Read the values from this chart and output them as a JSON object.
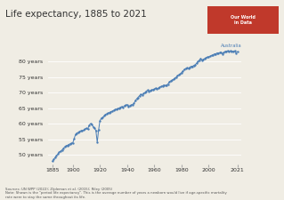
{
  "title": "Life expectancy, 1885 to 2021",
  "title_fontsize": 7.5,
  "background_color": "#f0ede4",
  "line_color": "#4a7db5",
  "label_color": "#4a7db5",
  "grid_color": "#ffffff",
  "text_color": "#333333",
  "note_color": "#555555",
  "label": "Australia",
  "yticks": [
    50,
    55,
    60,
    65,
    70,
    75,
    80
  ],
  "ytick_labels": [
    "50 years",
    "55 years",
    "60 years",
    "65 years",
    "70 years",
    "75 years",
    "80 years"
  ],
  "xticks": [
    1885,
    1900,
    1920,
    1940,
    1960,
    1980,
    2000,
    2021
  ],
  "xlim": [
    1882,
    2024
  ],
  "ylim": [
    47,
    87
  ],
  "source_text": "Sources: UN WPP (2022); Zijdeman et al. (2015); Riley (2005)\nNote: Shown is the \"period life expectancy\". This is the average number of years a newborn would live if age-specific mortality\nrate were to stay the same throughout its life.",
  "owid_box_color": "#c0392b",
  "owid_text": "Our World\nin Data",
  "data": {
    "years": [
      1885,
      1886,
      1887,
      1888,
      1889,
      1890,
      1891,
      1892,
      1893,
      1894,
      1895,
      1896,
      1897,
      1898,
      1899,
      1900,
      1901,
      1902,
      1903,
      1904,
      1905,
      1906,
      1907,
      1908,
      1909,
      1910,
      1911,
      1912,
      1913,
      1914,
      1915,
      1916,
      1917,
      1918,
      1919,
      1920,
      1921,
      1922,
      1923,
      1924,
      1925,
      1926,
      1927,
      1928,
      1929,
      1930,
      1931,
      1932,
      1933,
      1934,
      1935,
      1936,
      1937,
      1938,
      1939,
      1940,
      1941,
      1942,
      1943,
      1944,
      1945,
      1946,
      1947,
      1948,
      1949,
      1950,
      1951,
      1952,
      1953,
      1954,
      1955,
      1956,
      1957,
      1958,
      1959,
      1960,
      1961,
      1962,
      1963,
      1964,
      1965,
      1966,
      1967,
      1968,
      1969,
      1970,
      1971,
      1972,
      1973,
      1974,
      1975,
      1976,
      1977,
      1978,
      1979,
      1980,
      1981,
      1982,
      1983,
      1984,
      1985,
      1986,
      1987,
      1988,
      1989,
      1990,
      1991,
      1992,
      1993,
      1994,
      1995,
      1996,
      1997,
      1998,
      1999,
      2000,
      2001,
      2002,
      2003,
      2004,
      2005,
      2006,
      2007,
      2008,
      2009,
      2010,
      2011,
      2012,
      2013,
      2014,
      2015,
      2016,
      2017,
      2018,
      2019,
      2020,
      2021
    ],
    "values": [
      47.9,
      48.5,
      49.1,
      49.7,
      50.2,
      50.8,
      51.1,
      51.5,
      52.0,
      52.5,
      52.8,
      53.0,
      53.3,
      53.5,
      53.7,
      53.8,
      55.2,
      56.5,
      57.0,
      57.2,
      57.5,
      57.7,
      57.8,
      57.9,
      58.2,
      58.5,
      58.2,
      59.5,
      60.0,
      59.8,
      59.0,
      58.5,
      57.8,
      54.0,
      58.0,
      61.0,
      61.8,
      62.0,
      62.5,
      63.0,
      63.2,
      63.4,
      63.6,
      63.9,
      64.0,
      64.3,
      64.5,
      64.7,
      64.8,
      65.0,
      65.3,
      65.5,
      65.3,
      65.8,
      66.0,
      66.1,
      65.6,
      65.8,
      66.0,
      66.2,
      66.5,
      67.5,
      68.0,
      68.5,
      69.0,
      69.5,
      69.3,
      69.8,
      70.0,
      70.5,
      70.8,
      70.5,
      70.7,
      70.9,
      71.0,
      71.1,
      71.5,
      71.3,
      71.5,
      71.8,
      72.0,
      72.2,
      72.5,
      72.3,
      72.5,
      72.8,
      73.5,
      73.8,
      74.0,
      74.3,
      74.7,
      75.0,
      75.5,
      75.8,
      76.0,
      76.5,
      77.0,
      77.5,
      77.8,
      78.0,
      77.8,
      78.2,
      78.5,
      78.5,
      78.8,
      79.0,
      79.5,
      80.0,
      80.5,
      81.0,
      80.5,
      80.8,
      81.0,
      81.3,
      81.5,
      81.5,
      81.8,
      82.0,
      82.1,
      82.5,
      82.5,
      82.8,
      82.8,
      82.9,
      83.1,
      82.5,
      83.0,
      83.3,
      83.4,
      83.5,
      83.2,
      83.5,
      83.4,
      83.4,
      83.5,
      82.8,
      83.2
    ]
  }
}
